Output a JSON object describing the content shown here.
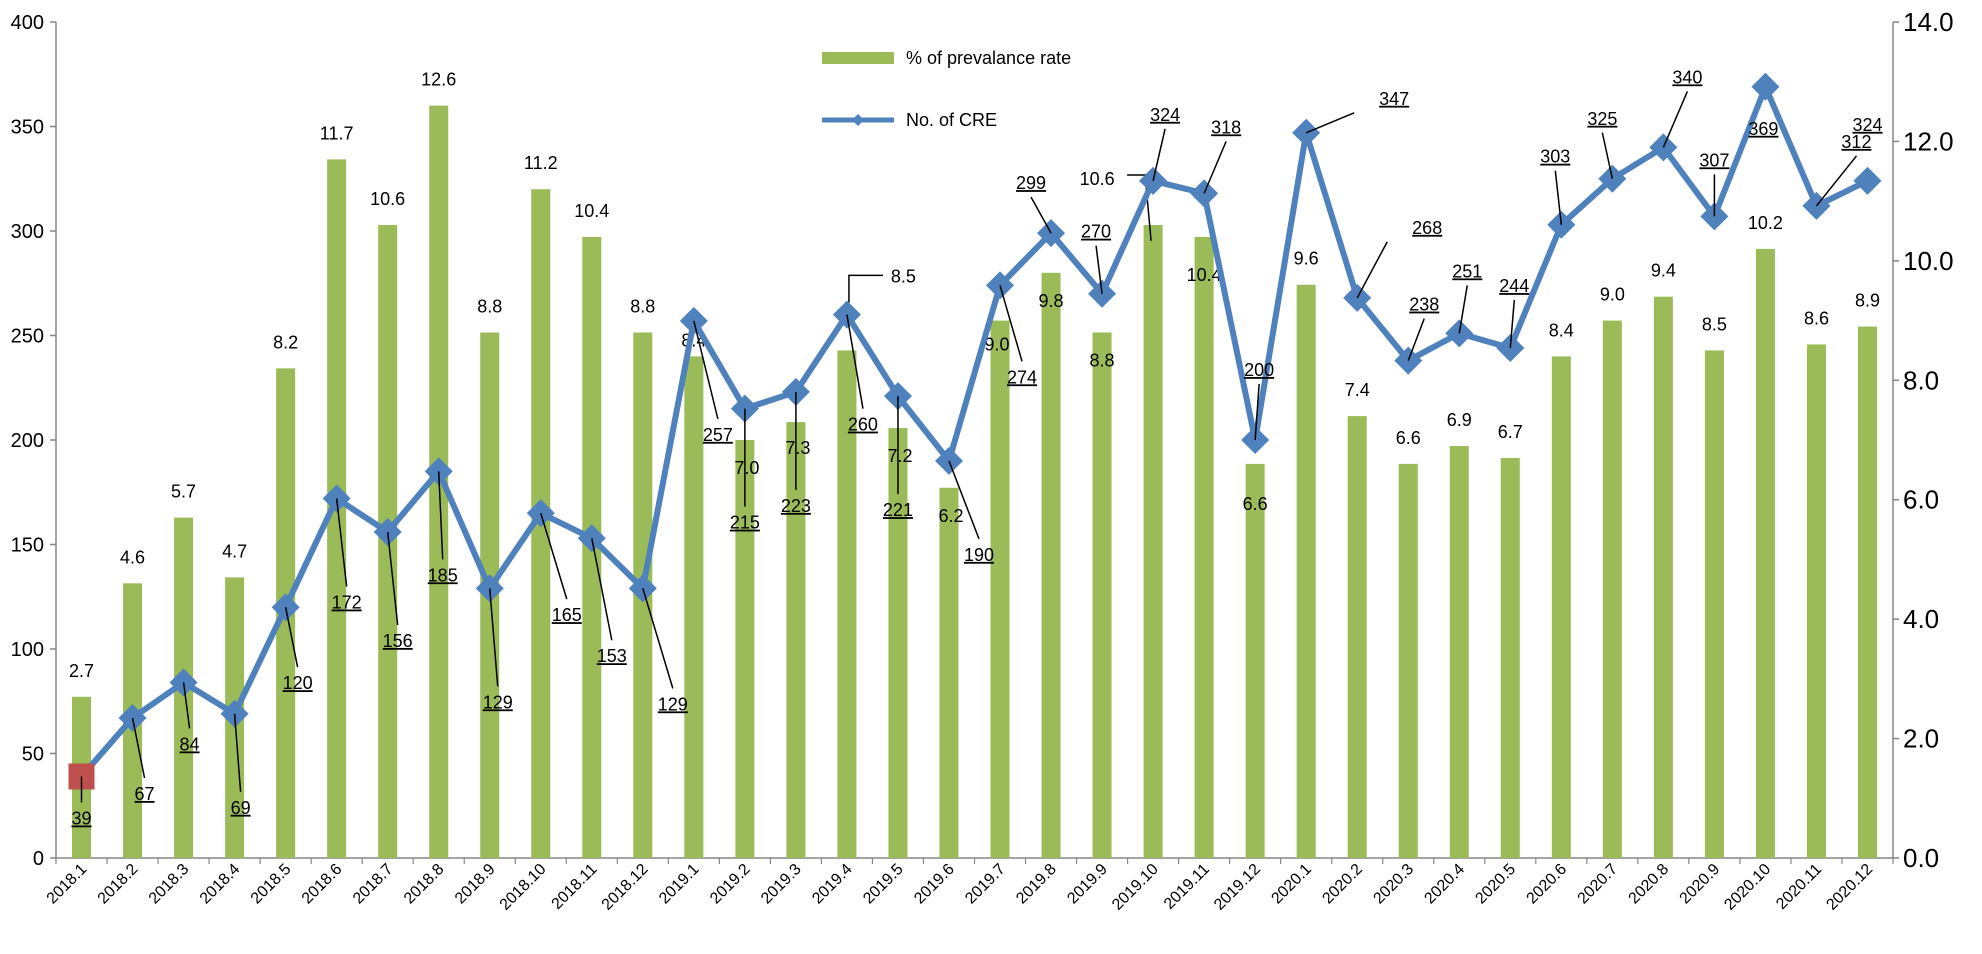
{
  "chart_data": {
    "type": "bar+line",
    "title": "",
    "xlabel": "",
    "categories": [
      "2018.1",
      "2018.2",
      "2018.3",
      "2018.4",
      "2018.5",
      "2018.6",
      "2018.7",
      "2018.8",
      "2018.9",
      "2018.10",
      "2018.11",
      "2018.12",
      "2019.1",
      "2019.2",
      "2019.3",
      "2019.4",
      "2019.5",
      "2019.6",
      "2019.7",
      "2019.8",
      "2019.9",
      "2019.10",
      "2019.11",
      "2019.12",
      "2020.1",
      "2020.2",
      "2020.3",
      "2020.4",
      "2020.5",
      "2020.6",
      "2020.7",
      "2020.8",
      "2020.9",
      "2020.10",
      "2020.11",
      "2020.12"
    ],
    "series": [
      {
        "name": "% of prevalance rate",
        "type": "bar",
        "axis": "right",
        "color": "#9BBB59",
        "values": [
          2.7,
          4.6,
          5.7,
          4.7,
          8.2,
          11.7,
          10.6,
          12.6,
          8.8,
          11.2,
          10.4,
          8.8,
          8.4,
          7.0,
          7.3,
          8.5,
          7.2,
          6.2,
          9.0,
          9.8,
          8.8,
          10.6,
          10.4,
          6.6,
          9.6,
          7.4,
          6.6,
          6.9,
          6.7,
          8.4,
          9.0,
          9.4,
          8.5,
          10.2,
          8.6,
          8.9
        ],
        "labels": [
          "2.7",
          "4.6",
          "5.7",
          "4.7",
          "8.2",
          "11.7",
          "10.6",
          "12.6",
          "8.8",
          "11.2",
          "10.4",
          "8.8",
          "8.4",
          "7.0",
          "7.3",
          "8.5",
          "7.2",
          "6.2",
          "9.0",
          "9.8",
          "8.8",
          "10.6",
          "10.4",
          "6.6",
          "9.6",
          "7.4",
          "6.6",
          "6.9",
          "6.7",
          "8.4",
          "9.0",
          "9.4",
          "8.5",
          "10.2",
          "8.6",
          "8.9"
        ]
      },
      {
        "name": "No. of CRE",
        "type": "line",
        "axis": "left",
        "color": "#4F81BD",
        "values": [
          39,
          67,
          84,
          69,
          120,
          172,
          156,
          185,
          129,
          165,
          153,
          129,
          257,
          215,
          223,
          260,
          221,
          190,
          274,
          299,
          270,
          324,
          318,
          200,
          347,
          268,
          238,
          251,
          244,
          303,
          325,
          340,
          307,
          369,
          312,
          324
        ],
        "labels": [
          "39",
          "67",
          "84",
          "69",
          "120",
          "172",
          "156",
          "185",
          "129",
          "165",
          "153",
          "129",
          "257",
          "215",
          "223",
          "260",
          "221",
          "190",
          "274",
          "299",
          "270",
          "324",
          "318",
          "200",
          "347",
          "268",
          "238",
          "251",
          "244",
          "303",
          "325",
          "340",
          "307",
          "369",
          "312",
          "324"
        ]
      }
    ],
    "y_left": {
      "ylim": [
        0,
        400
      ],
      "ticks": [
        "0",
        "50",
        "100",
        "150",
        "200",
        "250",
        "300",
        "350",
        "400"
      ]
    },
    "y_right": {
      "ylim": [
        0,
        14
      ],
      "ticks": [
        "0.0",
        "2.0",
        "4.0",
        "6.0",
        "8.0",
        "10.0",
        "12.0",
        "14.0"
      ]
    },
    "legend_position": "top-center",
    "marker_highlight_color": "#C0504D"
  }
}
